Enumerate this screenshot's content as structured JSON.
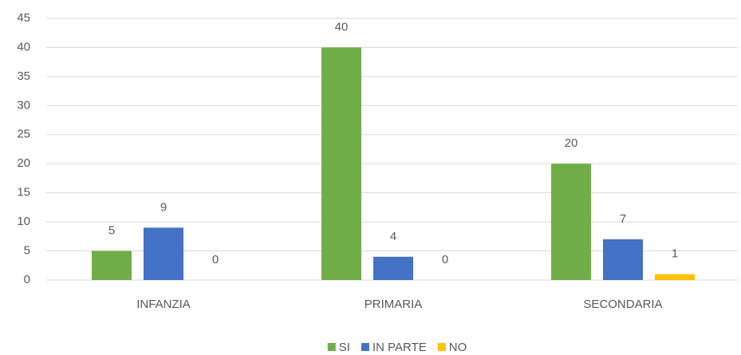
{
  "chart_data": {
    "type": "bar",
    "categories": [
      "INFANZIA",
      "PRIMARIA",
      "SECONDARIA"
    ],
    "series": [
      {
        "name": "SI",
        "color": "#70ad47",
        "values": [
          5,
          40,
          20
        ]
      },
      {
        "name": "IN PARTE",
        "color": "#4472c4",
        "values": [
          9,
          4,
          7
        ]
      },
      {
        "name": "NO",
        "color": "#ffc000",
        "values": [
          0,
          0,
          1
        ]
      }
    ],
    "ylim": [
      0,
      45
    ],
    "yticks": [
      0,
      5,
      10,
      15,
      20,
      25,
      30,
      35,
      40,
      45
    ],
    "grid": true,
    "legend": "bottom"
  }
}
